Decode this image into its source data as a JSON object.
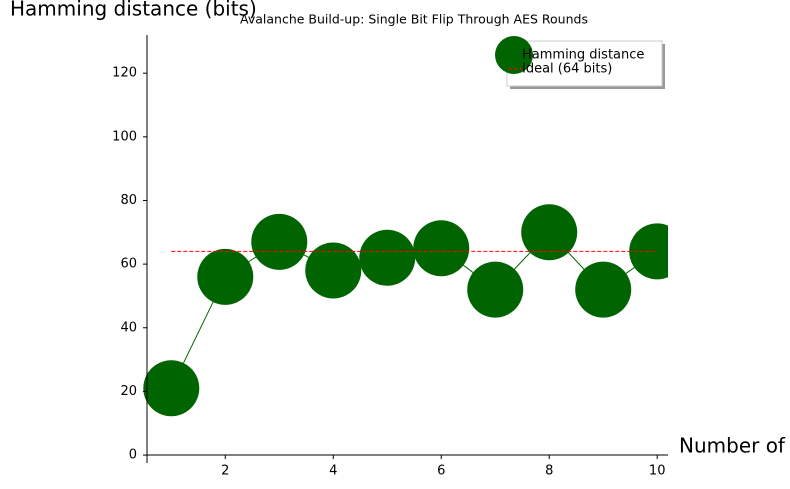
{
  "chart_data": {
    "type": "line",
    "title": "Avalanche Build-up: Single Bit Flip Through AES Rounds",
    "x_label": "Number of rounds",
    "y_label": "Hamming distance (bits)",
    "x": [
      1,
      2,
      3,
      4,
      5,
      6,
      7,
      8,
      9,
      10
    ],
    "series": [
      {
        "name": "Hamming distance",
        "color": "#006400",
        "values": [
          21,
          56,
          67,
          58,
          62,
          65,
          52,
          70,
          52,
          64
        ]
      },
      {
        "name": "Ideal (64 bits)",
        "color": "#ff0000",
        "values": [
          64,
          64,
          64,
          64,
          64,
          64,
          64,
          64,
          64,
          64
        ],
        "dashed": true
      }
    ],
    "xlim": [
      0.55,
      10.2
    ],
    "ylim": [
      -2.5,
      132
    ],
    "xticks": [
      2,
      4,
      6,
      8,
      10
    ],
    "yticks": [
      0,
      20,
      40,
      60,
      80,
      100,
      120
    ],
    "legend": "upper right",
    "grid": false
  }
}
